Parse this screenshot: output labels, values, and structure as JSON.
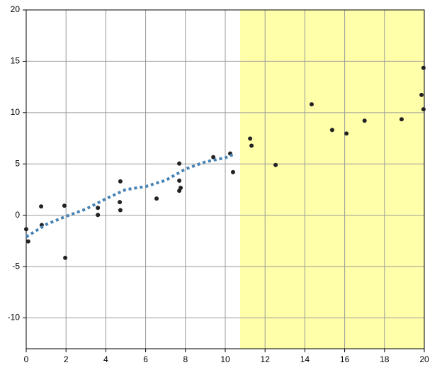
{
  "chart_data": {
    "type": "scatter",
    "xlim": [
      0,
      20
    ],
    "ylim": [
      -13,
      20
    ],
    "xticks": [
      0,
      2,
      4,
      6,
      8,
      10,
      12,
      14,
      16,
      18,
      20
    ],
    "yticks": [
      -10,
      -5,
      0,
      5,
      10,
      15,
      20
    ],
    "grid": true,
    "shaded_region": {
      "x": [
        10.75,
        20
      ],
      "color": "#ffffaa"
    },
    "series": [
      {
        "color": "#222222",
        "x": [
          0,
          0.1,
          0.75,
          0.78,
          1.92,
          1.96,
          3.6,
          3.6,
          4.73,
          4.7,
          4.73,
          6.55,
          7.69,
          7.69,
          7.76,
          7.69,
          9.4,
          10.25,
          10.39,
          11.25,
          11.32,
          12.53,
          14.34,
          15.37,
          16.09,
          17.0,
          18.86,
          19.86,
          19.96,
          19.96
        ],
        "values": [
          -1.36,
          -2.55,
          0.86,
          -0.95,
          0.93,
          -4.15,
          0.72,
          0.03,
          3.3,
          1.28,
          0.5,
          1.63,
          5.04,
          3.37,
          2.67,
          2.39,
          5.66,
          6.01,
          4.2,
          7.47,
          6.78,
          4.9,
          10.81,
          8.31,
          7.96,
          9.21,
          9.35,
          11.72,
          14.36,
          10.33
        ]
      },
      {
        "type": "line",
        "color": "#4682b4",
        "x": [
          0,
          1,
          2,
          3,
          4,
          5,
          6,
          7,
          8,
          9,
          10,
          10.5
        ],
        "values": [
          -2.1,
          -0.9,
          -0.1,
          0.6,
          1.6,
          2.5,
          2.8,
          3.4,
          4.5,
          5.2,
          5.6,
          6.0
        ]
      }
    ]
  }
}
